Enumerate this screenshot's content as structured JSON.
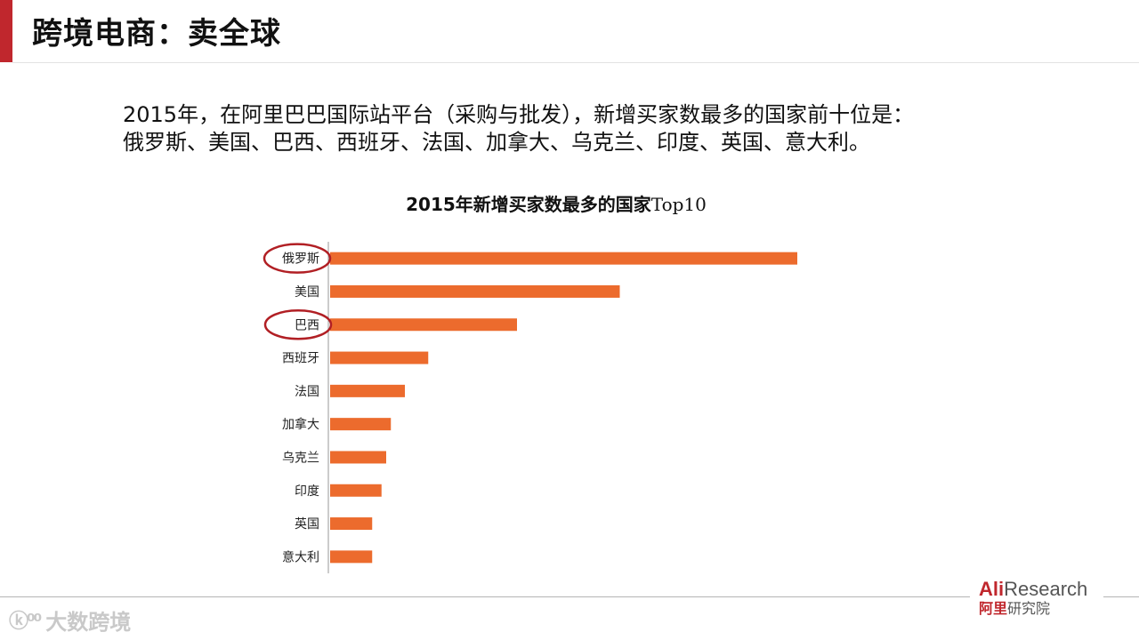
{
  "header": {
    "title": "跨境电商：卖全球"
  },
  "description": {
    "line1": "2015年，在阿里巴巴国际站平台（采购与批发），新增买家数最多的国家前十位是：",
    "line2": "俄罗斯、美国、巴西、西班牙、法国、加拿大、乌克兰、印度、英国、意大利。"
  },
  "chart_data": {
    "type": "bar",
    "orientation": "horizontal",
    "title": "2015年新增买家家数最多的国家Top10",
    "title_parts": {
      "bold": "2015年新增买家数最多的国家",
      "regular": "Top10"
    },
    "categories": [
      "俄罗斯",
      "美国",
      "巴西",
      "西班牙",
      "法国",
      "加拿大",
      "乌克兰",
      "印度",
      "英国",
      "意大利"
    ],
    "values": [
      100,
      62,
      40,
      21,
      16,
      13,
      12,
      11,
      9,
      9
    ],
    "highlighted": [
      "俄罗斯",
      "巴西"
    ],
    "bar_color": "#ec6b2d",
    "highlight_color": "#b11f24",
    "xlabel": "",
    "ylabel": "",
    "grid": false,
    "axis_ticks_shown": false
  },
  "footer": {
    "logo_text": "大数跨境",
    "brand_ali": "Ali",
    "brand_research": "Research",
    "brand_cn_red": "阿里",
    "brand_cn_grey": "研究院"
  }
}
